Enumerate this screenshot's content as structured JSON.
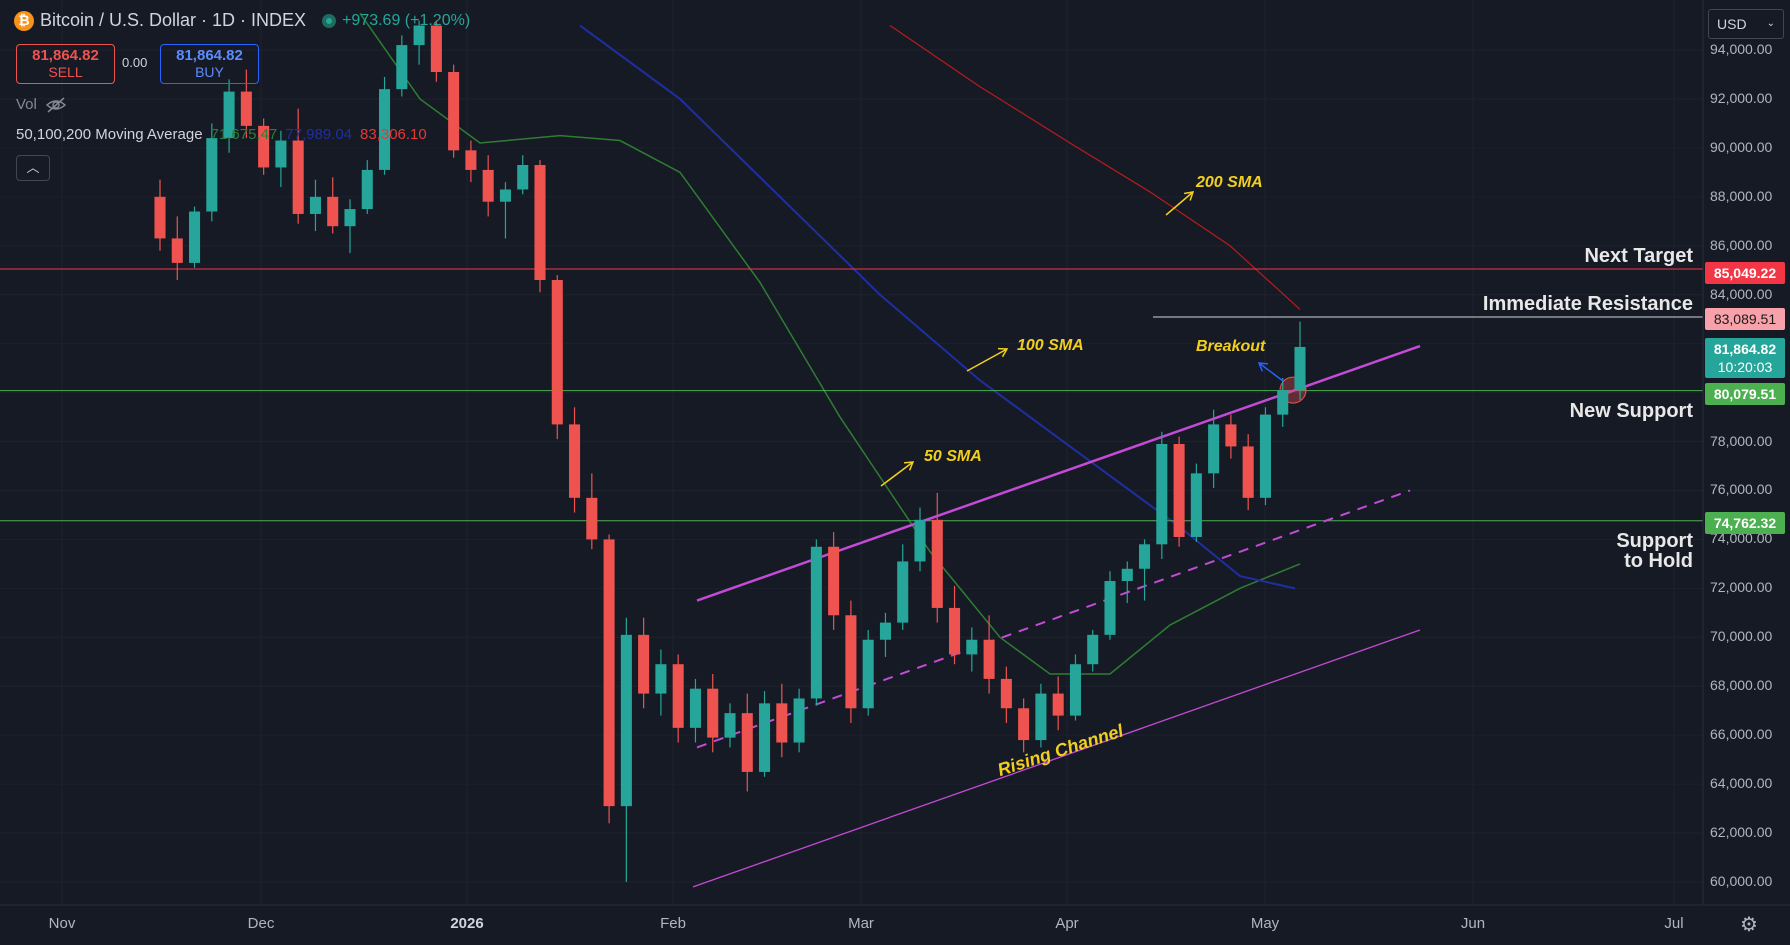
{
  "header": {
    "icon": "bitcoin-icon",
    "symbol_title": "Bitcoin / U.S. Dollar · 1D · INDEX",
    "change": "+973.69 (+1.20%)"
  },
  "trade": {
    "sell_price": "81,864.82",
    "sell_label": "SELL",
    "spread": "0.00",
    "buy_price": "81,864.82",
    "buy_label": "BUY"
  },
  "indicators": {
    "vol_label": "Vol",
    "ma_label": "50,100,200 Moving Average",
    "ma50": "71,675.47",
    "ma100": "77,989.04",
    "ma200": "83,306.10",
    "collapse_icon": "chevron-up-icon"
  },
  "currency": "USD",
  "price_axis": [
    "94,000.00",
    "92,000.00",
    "90,000.00",
    "88,000.00",
    "86,000.00",
    "84,000.00",
    "78,000.00",
    "76,000.00",
    "74,000.00",
    "72,000.00",
    "70,000.00",
    "68,000.00",
    "66,000.00",
    "64,000.00",
    "62,000.00",
    "60,000.00"
  ],
  "price_tags": {
    "next_target": "85,049.22",
    "immediate_resistance": "83,089.51",
    "current_price": "81,864.82",
    "countdown": "10:20:03",
    "new_support": "80,079.51",
    "support_hold": "74,762.32"
  },
  "time_axis": [
    "Nov",
    "Dec",
    "2026",
    "Feb",
    "Mar",
    "Apr",
    "May",
    "Jun",
    "Jul"
  ],
  "annotations": {
    "next_target": "Next Target",
    "immediate_resistance": "Immediate Resistance",
    "new_support": "New Support",
    "support_line1": "Support",
    "support_line2": "to Hold",
    "sma200": "200 SMA",
    "sma100": "100 SMA",
    "sma50": "50 SMA",
    "breakout": "Breakout",
    "rising_channel": "Rising Channel"
  },
  "colors": {
    "up": "#26a69a",
    "down": "#ef5350",
    "sma50": "#2e7d32",
    "sma100": "#1e2fa0",
    "sma200": "#b71c1c",
    "channel": "#c34bd6",
    "annotation": "#f2cf1f"
  },
  "chart_data": {
    "type": "candlestick",
    "ylim": [
      59000,
      95000
    ],
    "key_levels": {
      "next_target": 85049.22,
      "immediate_resistance": 83089.51,
      "new_support": 80079.51,
      "support_to_hold": 74762.32
    },
    "current_price": 81864.82,
    "candles_ohlc_approx": [
      [
        88000,
        88700,
        85800,
        86300
      ],
      [
        86300,
        87200,
        84600,
        85300
      ],
      [
        85300,
        87600,
        85100,
        87400
      ],
      [
        87400,
        91000,
        87000,
        90400
      ],
      [
        90400,
        92800,
        89800,
        92300
      ],
      [
        92300,
        93200,
        90400,
        90900
      ],
      [
        90900,
        91200,
        88900,
        89200
      ],
      [
        89200,
        90700,
        88400,
        90300
      ],
      [
        90300,
        91600,
        86900,
        87300
      ],
      [
        87300,
        88700,
        86600,
        88000
      ],
      [
        88000,
        88800,
        86500,
        86800
      ],
      [
        86800,
        87900,
        85700,
        87500
      ],
      [
        87500,
        89500,
        87300,
        89100
      ],
      [
        89100,
        92900,
        88900,
        92400
      ],
      [
        92400,
        94600,
        92100,
        94200
      ],
      [
        94200,
        95200,
        93400,
        95000
      ],
      [
        95000,
        95200,
        92700,
        93100
      ],
      [
        93100,
        93400,
        89600,
        89900
      ],
      [
        89900,
        90300,
        88600,
        89100
      ],
      [
        89100,
        89700,
        87200,
        87800
      ],
      [
        87800,
        88600,
        86300,
        88300
      ],
      [
        88300,
        89700,
        88100,
        89300
      ],
      [
        89300,
        89500,
        84100,
        84600
      ],
      [
        84600,
        84800,
        78100,
        78700
      ],
      [
        78700,
        79400,
        75100,
        75700
      ],
      [
        75700,
        76700,
        73600,
        74000
      ],
      [
        74000,
        74200,
        62400,
        63100
      ],
      [
        63100,
        70800,
        60000,
        70100
      ],
      [
        70100,
        70800,
        67100,
        67700
      ],
      [
        67700,
        69500,
        66800,
        68900
      ],
      [
        68900,
        69300,
        65700,
        66300
      ],
      [
        66300,
        68300,
        65700,
        67900
      ],
      [
        67900,
        68500,
        65300,
        65900
      ],
      [
        65900,
        67300,
        65500,
        66900
      ],
      [
        66900,
        67700,
        63700,
        64500
      ],
      [
        64500,
        67800,
        64300,
        67300
      ],
      [
        67300,
        68100,
        65100,
        65700
      ],
      [
        65700,
        67900,
        65300,
        67500
      ],
      [
        67500,
        74000,
        67200,
        73700
      ],
      [
        73700,
        74300,
        70300,
        70900
      ],
      [
        70900,
        71500,
        66500,
        67100
      ],
      [
        67100,
        70300,
        66800,
        69900
      ],
      [
        69900,
        71000,
        69200,
        70600
      ],
      [
        70600,
        73800,
        70300,
        73100
      ],
      [
        73100,
        75300,
        72700,
        74800
      ],
      [
        74800,
        75900,
        70600,
        71200
      ],
      [
        71200,
        72100,
        68900,
        69300
      ],
      [
        69300,
        70400,
        68600,
        69900
      ],
      [
        69900,
        70900,
        67700,
        68300
      ],
      [
        68300,
        68800,
        66500,
        67100
      ],
      [
        67100,
        67500,
        65300,
        65800
      ],
      [
        65800,
        68100,
        65500,
        67700
      ],
      [
        67700,
        68400,
        66200,
        66800
      ],
      [
        66800,
        69300,
        66600,
        68900
      ],
      [
        68900,
        70300,
        68600,
        70100
      ],
      [
        70100,
        72700,
        69900,
        72300
      ],
      [
        72300,
        73100,
        71400,
        72800
      ],
      [
        72800,
        74000,
        71500,
        73800
      ],
      [
        73800,
        78400,
        73200,
        77900
      ],
      [
        77900,
        78200,
        73700,
        74100
      ],
      [
        74100,
        77100,
        73900,
        76700
      ],
      [
        76700,
        79300,
        76100,
        78700
      ],
      [
        78700,
        79100,
        77300,
        77800
      ],
      [
        77800,
        78300,
        75200,
        75700
      ],
      [
        75700,
        79400,
        75400,
        79100
      ],
      [
        79100,
        80600,
        78600,
        80100
      ],
      [
        80100,
        82900,
        79700,
        81865
      ]
    ]
  }
}
